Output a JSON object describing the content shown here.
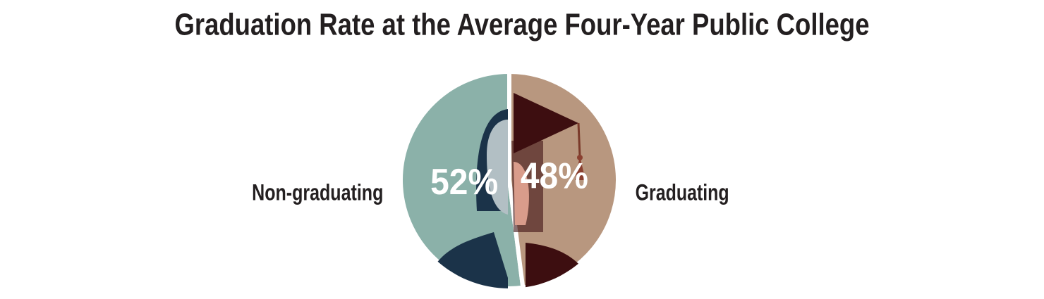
{
  "chart_data": {
    "type": "pie",
    "title": "Graduation Rate at the Average Four-Year Public College",
    "categories": [
      "Non-graduating",
      "Graduating"
    ],
    "values": [
      52,
      48
    ],
    "value_labels": [
      "52%",
      "48%"
    ],
    "colors": [
      "#8bb1a9",
      "#b8977f"
    ]
  }
}
